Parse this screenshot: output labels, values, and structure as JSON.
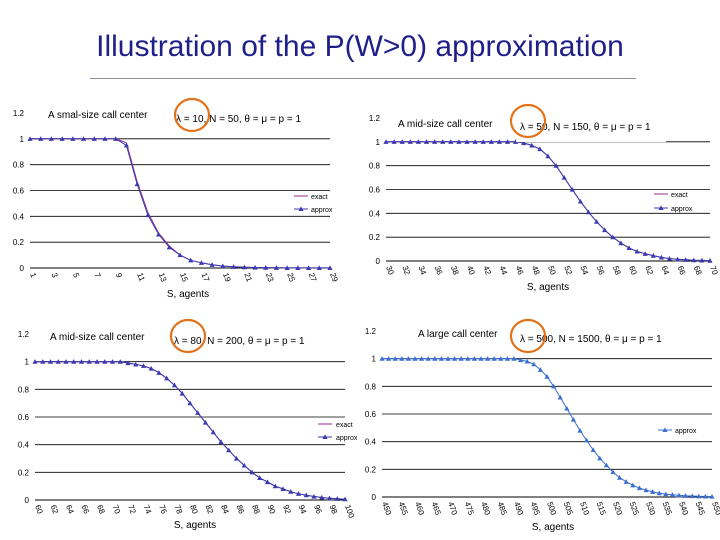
{
  "page": {
    "title": "Illustration of the P(W>0) approximation"
  },
  "chart_data": [
    {
      "type": "line",
      "title": "A smal-size call center",
      "formula": "λ = 10, N = 50, θ = μ = p = 1",
      "xlabel": "S, agents",
      "ylabel": "",
      "ylim": [
        0,
        1.2
      ],
      "yticks": [
        "0",
        "0.2",
        "0.4",
        "0.6",
        "0.8",
        "1",
        "1.2"
      ],
      "tick_labels": [
        "1",
        "3",
        "5",
        "7",
        "9",
        "11",
        "13",
        "15",
        "17",
        "19",
        "21",
        "23",
        "25",
        "27",
        "29"
      ],
      "legend": [
        "exact",
        "approx"
      ],
      "x": [
        1,
        2,
        3,
        4,
        5,
        6,
        7,
        8,
        9,
        10,
        11,
        12,
        13,
        14,
        15,
        16,
        17,
        18,
        19,
        20,
        21,
        22,
        23,
        24,
        25,
        26,
        27,
        28,
        29
      ],
      "series": [
        {
          "name": "exact",
          "color": "#9a2b8a",
          "values": [
            1,
            1,
            1,
            1,
            1,
            1,
            1,
            1,
            1,
            0.97,
            0.67,
            0.43,
            0.27,
            0.17,
            0.1,
            0.06,
            0.04,
            0.025,
            0.015,
            0.009,
            0.006,
            0.004,
            0.003,
            0.002,
            0.001,
            0.001,
            0.001,
            0.001,
            0.001
          ]
        },
        {
          "name": "approx",
          "color": "#3b3bb0",
          "values": [
            1,
            1,
            1,
            1,
            1,
            1,
            1,
            1,
            1,
            0.95,
            0.65,
            0.41,
            0.26,
            0.16,
            0.1,
            0.06,
            0.04,
            0.025,
            0.015,
            0.009,
            0.006,
            0.004,
            0.003,
            0.002,
            0.001,
            0.001,
            0.001,
            0.001,
            0.001
          ]
        }
      ]
    },
    {
      "type": "line",
      "title": "A mid-size call center",
      "formula": "λ = 50, N = 150, θ = μ = p = 1",
      "xlabel": "S, agents",
      "ylabel": "",
      "ylim": [
        0,
        1.2
      ],
      "yticks": [
        "0",
        "0.2",
        "0.4",
        "0.6",
        "0.8",
        "1",
        "1.2"
      ],
      "tick_labels": [
        "30",
        "32",
        "34",
        "36",
        "38",
        "40",
        "42",
        "44",
        "46",
        "48",
        "50",
        "52",
        "54",
        "56",
        "58",
        "60",
        "62",
        "64",
        "66",
        "68",
        "70"
      ],
      "legend": [
        "exact",
        "approx"
      ],
      "x": [
        30,
        31,
        32,
        33,
        34,
        35,
        36,
        37,
        38,
        39,
        40,
        41,
        42,
        43,
        44,
        45,
        46,
        47,
        48,
        49,
        50,
        51,
        52,
        53,
        54,
        55,
        56,
        57,
        58,
        59,
        60,
        61,
        62,
        63,
        64,
        65,
        66,
        67,
        68,
        69,
        70
      ],
      "series": [
        {
          "name": "exact",
          "color": "#9a2b8a",
          "values": [
            1,
            1,
            1,
            1,
            1,
            1,
            1,
            1,
            1,
            1,
            1,
            1,
            1,
            1,
            1,
            1,
            1,
            0.99,
            0.97,
            0.94,
            0.88,
            0.8,
            0.7,
            0.6,
            0.5,
            0.41,
            0.33,
            0.26,
            0.2,
            0.15,
            0.11,
            0.08,
            0.06,
            0.045,
            0.03,
            0.02,
            0.014,
            0.01,
            0.007,
            0.005,
            0.003
          ]
        },
        {
          "name": "approx",
          "color": "#3b3bb0",
          "values": [
            1,
            1,
            1,
            1,
            1,
            1,
            1,
            1,
            1,
            1,
            1,
            1,
            1,
            1,
            1,
            1,
            1,
            0.99,
            0.97,
            0.94,
            0.88,
            0.8,
            0.7,
            0.6,
            0.5,
            0.41,
            0.33,
            0.26,
            0.2,
            0.15,
            0.11,
            0.08,
            0.06,
            0.045,
            0.03,
            0.02,
            0.014,
            0.01,
            0.007,
            0.005,
            0.003
          ]
        }
      ]
    },
    {
      "type": "line",
      "title": "A mid-size call center",
      "formula": "λ = 80, N = 200, θ = μ = p = 1",
      "xlabel": "S, agents",
      "ylabel": "",
      "ylim": [
        0,
        1.2
      ],
      "yticks": [
        "0",
        "0.2",
        "0.4",
        "0.6",
        "0.8",
        "1",
        "1.2"
      ],
      "tick_labels": [
        "60",
        "62",
        "64",
        "66",
        "68",
        "70",
        "72",
        "74",
        "76",
        "78",
        "80",
        "82",
        "84",
        "86",
        "88",
        "90",
        "92",
        "94",
        "96",
        "98",
        "100"
      ],
      "legend": [
        "exact",
        "approx"
      ],
      "x": [
        60,
        61,
        62,
        63,
        64,
        65,
        66,
        67,
        68,
        69,
        70,
        71,
        72,
        73,
        74,
        75,
        76,
        77,
        78,
        79,
        80,
        81,
        82,
        83,
        84,
        85,
        86,
        87,
        88,
        89,
        90,
        91,
        92,
        93,
        94,
        95,
        96,
        97,
        98,
        99,
        100
      ],
      "series": [
        {
          "name": "exact",
          "color": "#9a2b8a",
          "values": [
            1,
            1,
            1,
            1,
            1,
            1,
            1,
            1,
            1,
            1,
            1,
            1,
            0.99,
            0.98,
            0.97,
            0.95,
            0.92,
            0.88,
            0.83,
            0.77,
            0.7,
            0.63,
            0.56,
            0.49,
            0.42,
            0.36,
            0.3,
            0.25,
            0.2,
            0.16,
            0.13,
            0.1,
            0.08,
            0.06,
            0.045,
            0.035,
            0.025,
            0.018,
            0.013,
            0.009,
            0.006
          ]
        },
        {
          "name": "approx",
          "color": "#3b3bb0",
          "values": [
            1,
            1,
            1,
            1,
            1,
            1,
            1,
            1,
            1,
            1,
            1,
            1,
            0.99,
            0.98,
            0.97,
            0.95,
            0.92,
            0.88,
            0.83,
            0.77,
            0.7,
            0.63,
            0.56,
            0.49,
            0.42,
            0.36,
            0.3,
            0.25,
            0.2,
            0.16,
            0.13,
            0.1,
            0.08,
            0.06,
            0.045,
            0.035,
            0.025,
            0.018,
            0.013,
            0.009,
            0.006
          ]
        }
      ]
    },
    {
      "type": "line",
      "title": "A large call center",
      "formula": "λ = 500, N = 1500, θ = μ = p = 1",
      "xlabel": "S, agents",
      "ylabel": "",
      "ylim": [
        0,
        1.2
      ],
      "yticks": [
        "0",
        "0.2",
        "0.4",
        "0.6",
        "0.8",
        "1",
        "1.2"
      ],
      "tick_labels": [
        "450",
        "455",
        "460",
        "465",
        "470",
        "475",
        "480",
        "485",
        "490",
        "495",
        "500",
        "505",
        "510",
        "515",
        "520",
        "525",
        "530",
        "535",
        "540",
        "545",
        "550"
      ],
      "legend": [
        "approx"
      ],
      "x": [
        450,
        452,
        454,
        456,
        458,
        460,
        462,
        464,
        466,
        468,
        470,
        472,
        474,
        476,
        478,
        480,
        482,
        484,
        486,
        488,
        490,
        492,
        494,
        496,
        498,
        500,
        502,
        504,
        506,
        508,
        510,
        512,
        514,
        516,
        518,
        520,
        522,
        524,
        526,
        528,
        530,
        532,
        534,
        536,
        538,
        540,
        542,
        544,
        546,
        548,
        550
      ],
      "series": [
        {
          "name": "approx",
          "color": "#3b6fd0",
          "values": [
            1,
            1,
            1,
            1,
            1,
            1,
            1,
            1,
            1,
            1,
            1,
            1,
            1,
            1,
            1,
            1,
            1,
            1,
            1,
            1,
            1,
            0.99,
            0.98,
            0.96,
            0.92,
            0.87,
            0.8,
            0.72,
            0.64,
            0.56,
            0.48,
            0.41,
            0.34,
            0.28,
            0.23,
            0.18,
            0.14,
            0.11,
            0.085,
            0.065,
            0.05,
            0.038,
            0.028,
            0.021,
            0.016,
            0.012,
            0.009,
            0.007,
            0.005,
            0.004,
            0.003
          ]
        }
      ]
    }
  ]
}
